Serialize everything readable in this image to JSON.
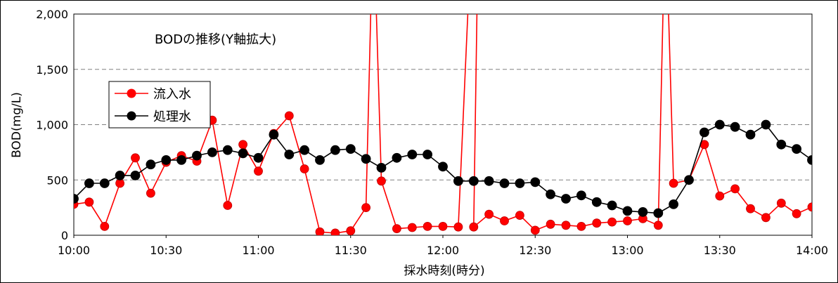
{
  "chart_data": {
    "type": "line",
    "title": "BODの推移(Y軸拡大)",
    "xlabel": "採水時刻(時分)",
    "ylabel": "BOD(mg/L)",
    "ylim": [
      0,
      2000
    ],
    "xlim": [
      "10:00",
      "14:00"
    ],
    "x_ticks": [
      "10:00",
      "10:30",
      "11:00",
      "11:30",
      "12:00",
      "12:30",
      "13:00",
      "13:30",
      "14:00"
    ],
    "y_ticks": [
      "0",
      "500",
      "1,000",
      "1,500",
      "2,000"
    ],
    "grid": "horizontal dashed",
    "legend_position": "top-left",
    "series": [
      {
        "name": "流入水",
        "color": "#ff0000",
        "x": [
          "10:00",
          "10:05",
          "10:10",
          "10:15",
          "10:20",
          "10:25",
          "10:30",
          "10:35",
          "10:40",
          "10:45",
          "10:50",
          "10:55",
          "11:00",
          "11:05",
          "11:10",
          "11:15",
          "11:20",
          "11:25",
          "11:30",
          "11:35",
          "11:40",
          "11:45",
          "11:50",
          "11:55",
          "12:00",
          "12:05",
          "12:10",
          "12:15",
          "12:20",
          "12:25",
          "12:30",
          "12:35",
          "12:40",
          "12:45",
          "12:50",
          "12:55",
          "13:00",
          "13:05",
          "13:10",
          "13:15",
          "13:20",
          "13:25",
          "13:30",
          "13:35",
          "13:40",
          "13:45",
          "13:50",
          "13:55",
          "14:00"
        ],
        "values": [
          280,
          300,
          80,
          470,
          700,
          380,
          660,
          720,
          670,
          1040,
          270,
          820,
          580,
          920,
          1080,
          600,
          30,
          20,
          40,
          250,
          490,
          60,
          70,
          80,
          80,
          75,
          75,
          190,
          130,
          180,
          45,
          100,
          90,
          80,
          110,
          120,
          130,
          150,
          90,
          470,
          500,
          820,
          355,
          420,
          240,
          160,
          290,
          195,
          255
        ],
        "peaks_beyond_axis": [
          {
            "between": [
              "11:35",
              "11:40"
            ]
          },
          {
            "between": [
              "12:05",
              "12:15"
            ]
          },
          {
            "between": [
              "13:10",
              "13:15"
            ]
          }
        ]
      },
      {
        "name": "処理水",
        "color": "#000000",
        "x": [
          "10:00",
          "10:05",
          "10:10",
          "10:15",
          "10:20",
          "10:25",
          "10:30",
          "10:35",
          "10:40",
          "10:45",
          "10:50",
          "10:55",
          "11:00",
          "11:05",
          "11:10",
          "11:15",
          "11:20",
          "11:25",
          "11:30",
          "11:35",
          "11:40",
          "11:45",
          "11:50",
          "11:55",
          "12:00",
          "12:05",
          "12:10",
          "12:15",
          "12:20",
          "12:25",
          "12:30",
          "12:35",
          "12:40",
          "12:45",
          "12:50",
          "12:55",
          "13:00",
          "13:05",
          "13:10",
          "13:15",
          "13:20",
          "13:25",
          "13:30",
          "13:35",
          "13:40",
          "13:45",
          "13:50",
          "13:55",
          "14:00"
        ],
        "values": [
          330,
          470,
          470,
          540,
          540,
          640,
          680,
          680,
          720,
          750,
          770,
          740,
          700,
          910,
          730,
          770,
          680,
          770,
          780,
          690,
          610,
          700,
          730,
          730,
          620,
          490,
          490,
          490,
          470,
          470,
          480,
          370,
          330,
          360,
          300,
          270,
          220,
          210,
          200,
          280,
          500,
          930,
          1000,
          980,
          910,
          1000,
          820,
          780,
          680
        ]
      }
    ]
  }
}
